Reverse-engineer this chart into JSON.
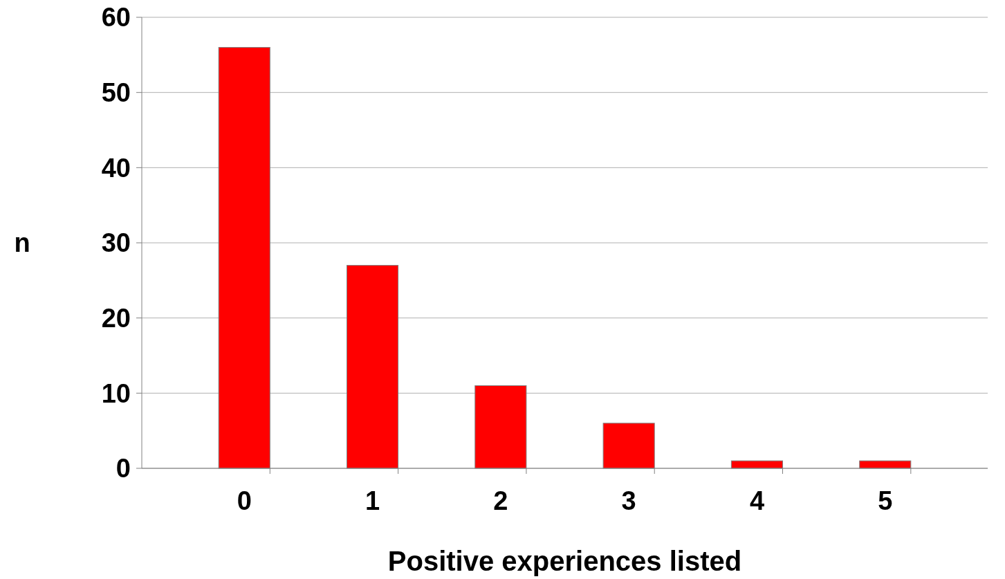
{
  "chart_data": {
    "type": "bar",
    "xlabel": "Positive experiences listed",
    "ylabel": "n",
    "categories": [
      "0",
      "1",
      "2",
      "3",
      "4",
      "5"
    ],
    "values": [
      56,
      27,
      11,
      6,
      1,
      1
    ],
    "color": "#ff0000",
    "ylim": [
      0,
      60
    ],
    "yticks": [
      0,
      10,
      20,
      30,
      40,
      50,
      60
    ],
    "grid": "y"
  }
}
